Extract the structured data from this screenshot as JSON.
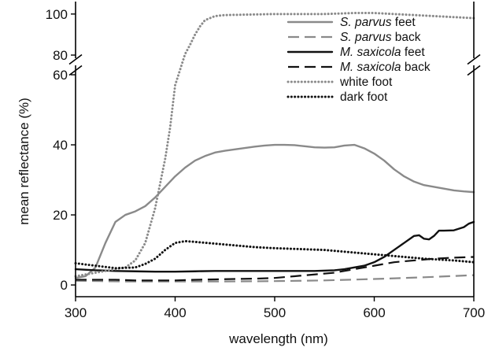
{
  "chart_data": {
    "type": "line",
    "xlabel": "wavelength (nm)",
    "ylabel": "mean reflectance (%)",
    "xlim": [
      300,
      700
    ],
    "xticks": [
      "300",
      "400",
      "500",
      "600",
      "700"
    ],
    "xtick_values": [
      300,
      400,
      500,
      600,
      700
    ],
    "ylim_lower": [
      -2,
      60
    ],
    "ylim_upper": [
      80,
      103
    ],
    "yticks": [
      "0",
      "20",
      "40",
      "60",
      "80",
      "100"
    ],
    "ytick_values": [
      0,
      20,
      40,
      60,
      80,
      100
    ],
    "axis_break": [
      60,
      80
    ],
    "grid": false,
    "legend_position": "top-right",
    "series": [
      {
        "name_prefix": "S. parvus",
        "name_suffix": " feet",
        "color": "#8a8a8a",
        "style": "solid",
        "points": [
          [
            300,
            2
          ],
          [
            310,
            2.5
          ],
          [
            320,
            5
          ],
          [
            330,
            12
          ],
          [
            340,
            18
          ],
          [
            350,
            20
          ],
          [
            360,
            21
          ],
          [
            370,
            22.5
          ],
          [
            380,
            25
          ],
          [
            390,
            28
          ],
          [
            400,
            31
          ],
          [
            410,
            33.5
          ],
          [
            420,
            35.5
          ],
          [
            430,
            36.8
          ],
          [
            440,
            37.8
          ],
          [
            450,
            38.3
          ],
          [
            460,
            38.7
          ],
          [
            470,
            39.1
          ],
          [
            480,
            39.5
          ],
          [
            490,
            39.8
          ],
          [
            500,
            40
          ],
          [
            510,
            40
          ],
          [
            520,
            39.9
          ],
          [
            530,
            39.6
          ],
          [
            540,
            39.3
          ],
          [
            550,
            39.2
          ],
          [
            560,
            39.3
          ],
          [
            570,
            39.8
          ],
          [
            580,
            40
          ],
          [
            590,
            39
          ],
          [
            600,
            37.5
          ],
          [
            610,
            35.5
          ],
          [
            620,
            33
          ],
          [
            630,
            31
          ],
          [
            640,
            29.5
          ],
          [
            650,
            28.5
          ],
          [
            660,
            28
          ],
          [
            670,
            27.5
          ],
          [
            680,
            27
          ],
          [
            690,
            26.7
          ],
          [
            700,
            26.5
          ]
        ]
      },
      {
        "name_prefix": "S. parvus",
        "name_suffix": " back",
        "color": "#8a8a8a",
        "style": "dashed",
        "points": [
          [
            300,
            1.2
          ],
          [
            350,
            1.0
          ],
          [
            400,
            1.0
          ],
          [
            450,
            1.0
          ],
          [
            500,
            1.1
          ],
          [
            550,
            1.3
          ],
          [
            600,
            1.7
          ],
          [
            650,
            2.2
          ],
          [
            700,
            2.8
          ]
        ]
      },
      {
        "name_prefix": "M. saxicola",
        "name_suffix": " feet",
        "color": "#111111",
        "style": "solid",
        "points": [
          [
            300,
            4.5
          ],
          [
            320,
            4.2
          ],
          [
            340,
            4
          ],
          [
            360,
            3.9
          ],
          [
            380,
            3.8
          ],
          [
            400,
            3.8
          ],
          [
            420,
            3.9
          ],
          [
            440,
            4
          ],
          [
            460,
            4
          ],
          [
            480,
            4
          ],
          [
            500,
            4
          ],
          [
            520,
            4
          ],
          [
            540,
            4
          ],
          [
            560,
            4.2
          ],
          [
            570,
            4.5
          ],
          [
            580,
            5
          ],
          [
            590,
            5.5
          ],
          [
            600,
            6.5
          ],
          [
            610,
            8
          ],
          [
            620,
            10
          ],
          [
            630,
            12
          ],
          [
            640,
            14
          ],
          [
            645,
            14.2
          ],
          [
            650,
            13.2
          ],
          [
            655,
            13
          ],
          [
            660,
            14
          ],
          [
            665,
            15.5
          ],
          [
            670,
            15.5
          ],
          [
            680,
            15.6
          ],
          [
            690,
            16.5
          ],
          [
            695,
            17.5
          ],
          [
            700,
            18
          ]
        ]
      },
      {
        "name_prefix": "M. saxicola",
        "name_suffix": " back",
        "color": "#111111",
        "style": "dashed",
        "points": [
          [
            300,
            1.5
          ],
          [
            320,
            1.5
          ],
          [
            340,
            1.5
          ],
          [
            360,
            1.3
          ],
          [
            380,
            1.3
          ],
          [
            400,
            1.3
          ],
          [
            420,
            1.5
          ],
          [
            440,
            1.6
          ],
          [
            460,
            1.7
          ],
          [
            480,
            1.8
          ],
          [
            500,
            2
          ],
          [
            520,
            2.5
          ],
          [
            540,
            3
          ],
          [
            560,
            3.5
          ],
          [
            580,
            4.5
          ],
          [
            600,
            5.5
          ],
          [
            620,
            6.5
          ],
          [
            640,
            7
          ],
          [
            660,
            7.5
          ],
          [
            680,
            7.8
          ],
          [
            700,
            8
          ]
        ]
      },
      {
        "name_prefix": "",
        "name_suffix": "white foot",
        "color": "#8a8a8a",
        "style": "dotted",
        "points": [
          [
            300,
            2.5
          ],
          [
            310,
            3
          ],
          [
            320,
            3.5
          ],
          [
            330,
            4
          ],
          [
            340,
            4.5
          ],
          [
            350,
            5
          ],
          [
            360,
            7
          ],
          [
            370,
            12
          ],
          [
            380,
            22
          ],
          [
            390,
            36
          ],
          [
            395,
            45
          ],
          [
            400,
            57
          ],
          [
            410,
            80.5
          ],
          [
            415,
            85
          ],
          [
            420,
            90
          ],
          [
            425,
            94
          ],
          [
            430,
            97
          ],
          [
            440,
            99
          ],
          [
            450,
            99.5
          ],
          [
            500,
            100
          ],
          [
            550,
            100
          ],
          [
            580,
            100.5
          ],
          [
            600,
            100.5
          ],
          [
            620,
            100
          ],
          [
            640,
            99.5
          ],
          [
            660,
            99
          ],
          [
            680,
            98.5
          ],
          [
            700,
            98
          ]
        ]
      },
      {
        "name_prefix": "",
        "name_suffix": "dark foot",
        "color": "#111111",
        "style": "dotted",
        "points": [
          [
            300,
            6.2
          ],
          [
            320,
            5.5
          ],
          [
            340,
            4.8
          ],
          [
            360,
            5
          ],
          [
            370,
            6
          ],
          [
            380,
            7.5
          ],
          [
            390,
            10
          ],
          [
            400,
            12
          ],
          [
            410,
            12.5
          ],
          [
            420,
            12.3
          ],
          [
            440,
            11.8
          ],
          [
            460,
            11.3
          ],
          [
            480,
            10.8
          ],
          [
            500,
            10.5
          ],
          [
            520,
            10.3
          ],
          [
            550,
            10
          ],
          [
            570,
            9.5
          ],
          [
            590,
            9
          ],
          [
            610,
            8.5
          ],
          [
            630,
            8
          ],
          [
            650,
            7.5
          ],
          [
            680,
            7
          ],
          [
            700,
            6.5
          ]
        ]
      }
    ]
  }
}
